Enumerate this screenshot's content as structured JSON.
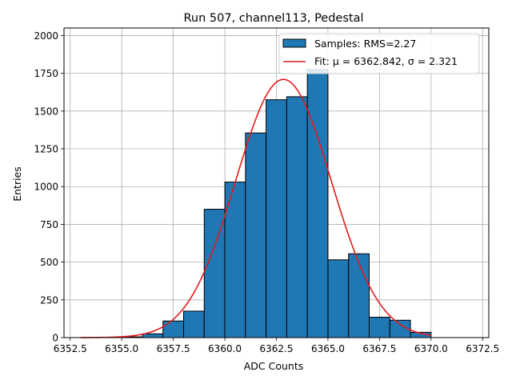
{
  "chart_data": {
    "type": "bar",
    "title": "Run 507, channel113, Pedestal",
    "xlabel": "ADC Counts",
    "ylabel": "Entries",
    "xlim": [
      6352.2,
      6372.8
    ],
    "ylim": [
      0,
      2050
    ],
    "x_ticks": [
      6352.5,
      6355.0,
      6357.5,
      6360.0,
      6362.5,
      6365.0,
      6367.5,
      6370.0,
      6372.5
    ],
    "x_tick_labels": [
      "6352.5",
      "6355.0",
      "6357.5",
      "6360.0",
      "6362.5",
      "6365.0",
      "6367.5",
      "6370.0",
      "6372.5"
    ],
    "y_ticks": [
      0,
      250,
      500,
      750,
      1000,
      1250,
      1500,
      1750,
      2000
    ],
    "y_tick_labels": [
      "0",
      "250",
      "500",
      "750",
      "1000",
      "1250",
      "1500",
      "1750",
      "2000"
    ],
    "grid": true,
    "legend_position": "top-right",
    "histogram": {
      "name": "Samples: RMS=2.27",
      "color": "#1f77b4",
      "edge_color": "#000000",
      "bin_edges": [
        6355,
        6356,
        6357,
        6358,
        6359,
        6360,
        6361,
        6362,
        6363,
        6364,
        6365,
        6366,
        6367,
        6368,
        6369,
        6370
      ],
      "counts": [
        5,
        25,
        110,
        175,
        850,
        1030,
        1355,
        1575,
        1595,
        1775,
        515,
        555,
        135,
        115,
        35
      ]
    },
    "fit": {
      "name": "Fit: μ = 6362.842, σ = 2.321",
      "color": "#e31a1c",
      "mu": 6362.842,
      "sigma": 2.321,
      "amplitude": 1710,
      "x_range": [
        6353.0,
        6370.0
      ]
    }
  }
}
